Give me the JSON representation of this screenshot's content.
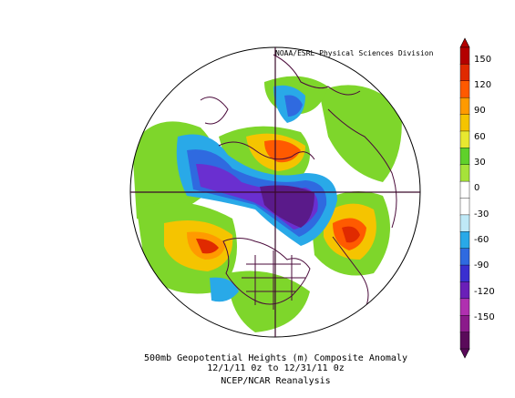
{
  "credit": "NOAA/ESRL Physical Sciences Division",
  "caption": {
    "line1": "500mb Geopotential Heights (m)   Composite Anomaly",
    "line2": "12/1/11 0z  to 12/31/11 0z",
    "line3": "NCEP/NCAR Reanalysis"
  },
  "colorbar": {
    "ticks": [
      "150",
      "120",
      "90",
      "60",
      "30",
      "0",
      "-30",
      "-60",
      "-90",
      "-120",
      "-150"
    ],
    "colors": [
      "#5a0a5a",
      "#8b1a8b",
      "#b030b0",
      "#6a1fb8",
      "#3a2fd0",
      "#2f6ae0",
      "#29a9e8",
      "#bfe9f7",
      "#ffffff",
      "#ffffff",
      "#a6e33a",
      "#5fd12b",
      "#e8e830",
      "#f5c400",
      "#ff9a00",
      "#ff5a00",
      "#e02a00",
      "#b40000"
    ]
  },
  "map": {
    "projection": "north-polar-stereographic",
    "anomaly_colors": {
      "strong_negative": "#5a1a8a",
      "negative": "#6a2fd0",
      "weak_negative": "#2f6ae0",
      "slight_negative": "#29a9e8",
      "neutral": "#ffffff",
      "slight_positive": "#7ed62b",
      "positive": "#f5c400",
      "strong_positive": "#ff5a00",
      "max_positive": "#e02a00"
    }
  }
}
